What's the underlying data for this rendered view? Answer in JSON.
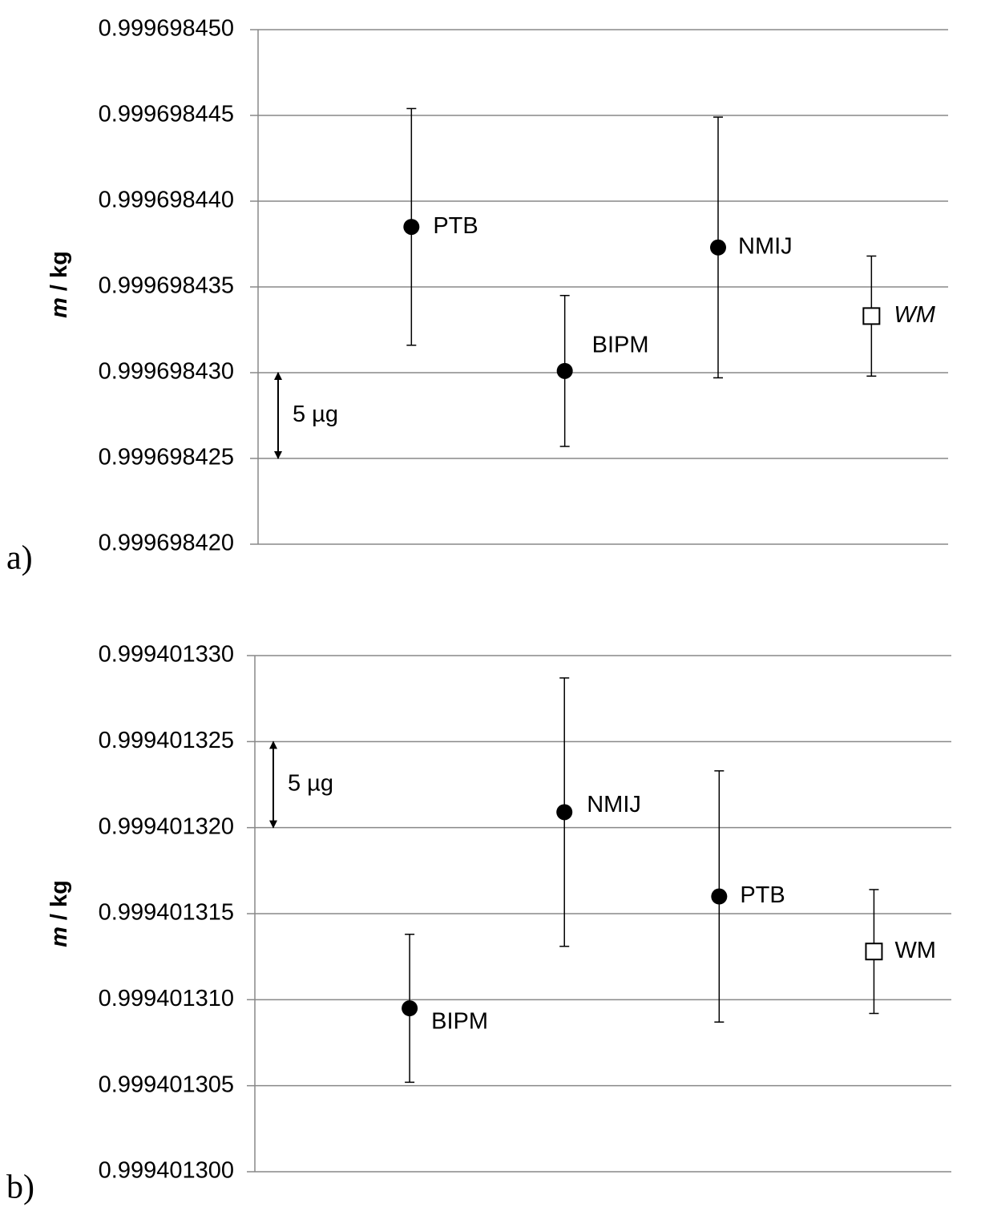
{
  "chart_data": [
    {
      "type": "errorbar",
      "panel_label": "a)",
      "ylabel_symbol": "m",
      "ylabel_unit": "/ kg",
      "labels": [
        "PTB",
        "BIPM",
        "NMIJ",
        "WM"
      ],
      "label_styles": [
        "normal",
        "normal",
        "normal",
        "italic"
      ],
      "markers": [
        "circle",
        "circle",
        "circle",
        "square"
      ],
      "values": [
        0.9996984385,
        0.9996984301,
        0.9996984373,
        0.9996984333
      ],
      "errors": [
        6.9e-09,
        4.4e-09,
        7.6e-09,
        3.5e-09
      ],
      "color": "#000000",
      "grid": true,
      "ylim": [
        0.99969842,
        0.99969845
      ],
      "yticks": [
        {
          "value": 0.99969842,
          "label": "0.999698420"
        },
        0.999698425,
        {
          "value": 0.99969843,
          "label": "0.999698430"
        },
        0.999698435,
        {
          "value": 0.99969844,
          "label": "0.999698440"
        },
        0.999698445,
        {
          "value": 0.99969845,
          "label": "0.999698450"
        }
      ],
      "annotation": {
        "text": "5 µg",
        "from": 0.99969843,
        "to": 0.999698425
      }
    },
    {
      "type": "errorbar",
      "panel_label": "b)",
      "ylabel_symbol": "m",
      "ylabel_unit": "/ kg",
      "labels": [
        "BIPM",
        "NMIJ",
        "PTB",
        "WM"
      ],
      "label_styles": [
        "normal",
        "normal",
        "normal",
        "normal"
      ],
      "markers": [
        "circle",
        "circle",
        "circle",
        "square"
      ],
      "values": [
        0.9994013095,
        0.9994013209,
        0.999401316,
        0.9994013128
      ],
      "errors": [
        4.3e-09,
        7.8e-09,
        7.3e-09,
        3.6e-09
      ],
      "color": "#000000",
      "grid": true,
      "ylim": [
        0.9994013,
        0.99940133
      ],
      "yticks": [
        {
          "value": 0.9994013,
          "label": "0.999401300"
        },
        0.999401305,
        {
          "value": 0.99940131,
          "label": "0.999401310"
        },
        0.999401315,
        {
          "value": 0.99940132,
          "label": "0.999401320"
        },
        0.999401325,
        {
          "value": 0.99940133,
          "label": "0.999401330"
        }
      ],
      "annotation": {
        "text": "5 µg",
        "from": 0.999401325,
        "to": 0.99940132
      }
    }
  ]
}
